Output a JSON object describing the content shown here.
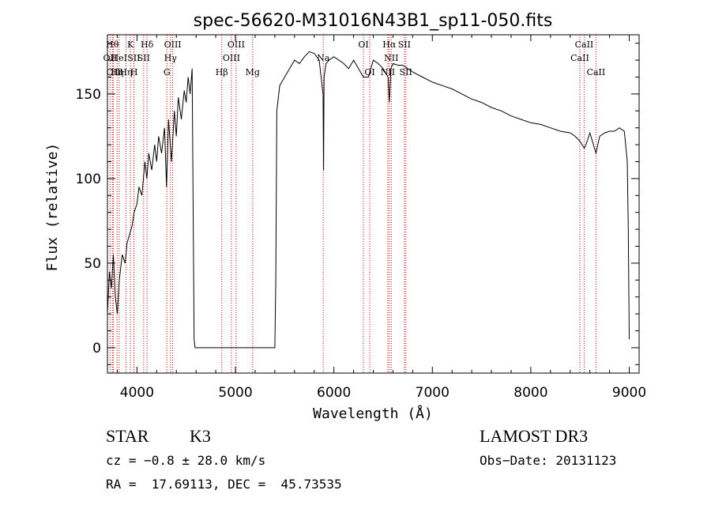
{
  "chart_data": {
    "type": "line",
    "title": "spec-56620-M31016N43B1_sp11-050.fits",
    "xlabel": "Wavelength (Å)",
    "ylabel": "Flux (relative)",
    "xlim": [
      3700,
      9100
    ],
    "ylim": [
      -15,
      185
    ],
    "xticks": [
      4000,
      5000,
      6000,
      7000,
      8000,
      9000
    ],
    "yticks": [
      0,
      50,
      100,
      150
    ],
    "grid": false,
    "series": [
      {
        "x": [
          3700,
          3720,
          3740,
          3760,
          3780,
          3800,
          3820,
          3850,
          3880,
          3900,
          3930,
          3950,
          3970,
          4000,
          4020,
          4050,
          4080,
          4100,
          4120,
          4150,
          4180,
          4200,
          4220,
          4250,
          4280,
          4300,
          4320,
          4350,
          4380,
          4400,
          4420,
          4450,
          4480,
          4500,
          4520,
          4540,
          4560,
          4580,
          4590,
          4600,
          5400,
          5410,
          5420,
          5450,
          5500,
          5550,
          5600,
          5650,
          5700,
          5750,
          5800,
          5850,
          5890,
          5895,
          5900,
          5920,
          5950,
          6000,
          6050,
          6100,
          6150,
          6200,
          6250,
          6300,
          6350,
          6400,
          6450,
          6500,
          6550,
          6563,
          6580,
          6600,
          6650,
          6700,
          6750,
          6800,
          6900,
          7000,
          7100,
          7200,
          7300,
          7400,
          7500,
          7600,
          7700,
          7800,
          7900,
          8000,
          8100,
          8200,
          8300,
          8400,
          8450,
          8500,
          8542,
          8560,
          8600,
          8662,
          8700,
          8750,
          8800,
          8850,
          8900,
          8950,
          8980,
          8990,
          9000
        ],
        "y": [
          20,
          45,
          35,
          55,
          30,
          20,
          40,
          55,
          50,
          62,
          68,
          72,
          80,
          85,
          95,
          90,
          110,
          100,
          115,
          105,
          120,
          110,
          125,
          115,
          130,
          95,
          135,
          110,
          140,
          125,
          148,
          135,
          152,
          145,
          160,
          150,
          165,
          5,
          0,
          0,
          0,
          40,
          140,
          155,
          160,
          165,
          170,
          168,
          172,
          175,
          174,
          170,
          150,
          105,
          160,
          168,
          170,
          172,
          170,
          168,
          165,
          170,
          165,
          160,
          160,
          170,
          168,
          165,
          160,
          145,
          165,
          168,
          167,
          167,
          165,
          163,
          160,
          157,
          155,
          153,
          150,
          147,
          145,
          142,
          140,
          137,
          135,
          133,
          132,
          130,
          128,
          127,
          125,
          122,
          118,
          120,
          127,
          115,
          125,
          127,
          128,
          128,
          130,
          128,
          110,
          70,
          5
        ]
      }
    ],
    "line_markers": [
      {
        "x": 3750,
        "label": "Hθ",
        "row": 1
      },
      {
        "x": 3727,
        "label": "OII",
        "row": 2
      },
      {
        "x": 3760,
        "label": "OII",
        "row": 3
      },
      {
        "x": 3798,
        "label": "Hη",
        "row": 3
      },
      {
        "x": 3819,
        "label": "HeI",
        "row": 2
      },
      {
        "x": 3889,
        "label": "Hη",
        "row": 3
      },
      {
        "x": 3934,
        "label": "K",
        "row": 1
      },
      {
        "x": 3968,
        "label": "SII",
        "row": 2
      },
      {
        "x": 3970,
        "label": "H",
        "row": 3
      },
      {
        "x": 4068,
        "label": "SII",
        "row": 2
      },
      {
        "x": 4102,
        "label": "Hδ",
        "row": 1
      },
      {
        "x": 4304,
        "label": "G",
        "row": 3
      },
      {
        "x": 4340,
        "label": "Hγ",
        "row": 2
      },
      {
        "x": 4363,
        "label": "OIII",
        "row": 1
      },
      {
        "x": 4861,
        "label": "Hβ",
        "row": 3
      },
      {
        "x": 4959,
        "label": "OIII",
        "row": 2
      },
      {
        "x": 5007,
        "label": "OIII",
        "row": 1
      },
      {
        "x": 5175,
        "label": "Mg",
        "row": 3
      },
      {
        "x": 5892,
        "label": "Na",
        "row": 2
      },
      {
        "x": 6300,
        "label": "OI",
        "row": 1
      },
      {
        "x": 6364,
        "label": "OI",
        "row": 3
      },
      {
        "x": 6548,
        "label": "NII",
        "row": 3
      },
      {
        "x": 6563,
        "label": "Hα",
        "row": 1
      },
      {
        "x": 6583,
        "label": "NII",
        "row": 2
      },
      {
        "x": 6716,
        "label": "SII",
        "row": 1
      },
      {
        "x": 6731,
        "label": "SII",
        "row": 3
      },
      {
        "x": 8498,
        "label": "CaII",
        "row": 2
      },
      {
        "x": 8542,
        "label": "CaII",
        "row": 1
      },
      {
        "x": 8662,
        "label": "CaII",
        "row": 3
      }
    ]
  },
  "info": {
    "class": "STAR",
    "subclass": "K3",
    "survey": "LAMOST DR3",
    "cz": "cz = −0.8 ± 28.0 km/s",
    "obsdate": "Obs−Date: 20131123",
    "radec": "RA =  17.69113, DEC =  45.73535"
  },
  "colors": {
    "line": "#000000",
    "marker": "#cc0000"
  }
}
